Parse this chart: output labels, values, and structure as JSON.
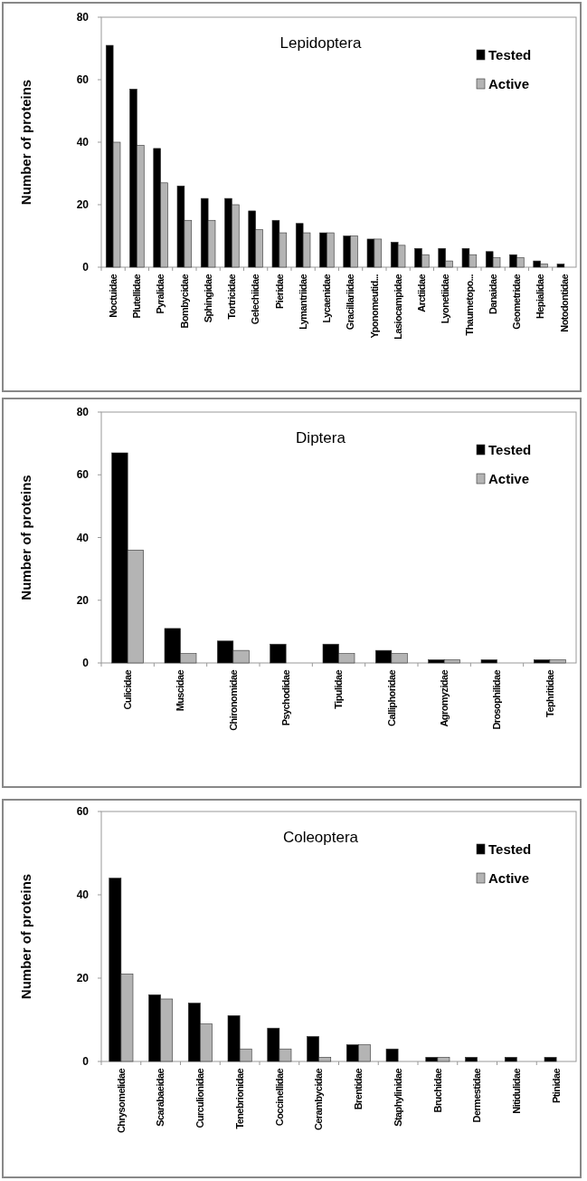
{
  "chart_data": [
    {
      "type": "bar",
      "title": "Lepidoptera",
      "ylabel": "Number of proteins",
      "categories": [
        "Noctuidae",
        "Plutellidae",
        "Pyralidae",
        "Bombycidae",
        "Sphingidae",
        "Tortricidae",
        "Gelechiidae",
        "Pieridae",
        "Lymantriidae",
        "Lycaenidae",
        "Gracillariidae",
        "Yponomeutid...",
        "Lasiocampidae",
        "Arctiidae",
        "Lyonetiidae",
        "Thaumetopo...",
        "Danaidae",
        "Geometridae",
        "Hepialidae",
        "Notodontidae"
      ],
      "series": [
        {
          "name": "Tested",
          "color": "#000000",
          "values": [
            71,
            57,
            38,
            26,
            22,
            22,
            18,
            15,
            14,
            11,
            10,
            9,
            8,
            6,
            6,
            6,
            5,
            4,
            2,
            1
          ]
        },
        {
          "name": "Active",
          "color": "#b4b4b4",
          "values": [
            40,
            39,
            27,
            15,
            15,
            20,
            12,
            11,
            11,
            11,
            10,
            9,
            7,
            4,
            2,
            4,
            3,
            3,
            1,
            0
          ]
        }
      ],
      "ylim": [
        0,
        80
      ],
      "yticks": [
        0,
        20,
        40,
        60,
        80
      ],
      "legend": "top right"
    },
    {
      "type": "bar",
      "title": "Diptera",
      "ylabel": "Number of proteins",
      "categories": [
        "Culicidae",
        "Muscidae",
        "Chironomidae",
        "Psychodidae",
        "Tipulidae",
        "Calliphoridae",
        "Agromyzidae",
        "Drosophilidae",
        "Tephritidae"
      ],
      "series": [
        {
          "name": "Tested",
          "color": "#000000",
          "values": [
            67,
            11,
            7,
            6,
            6,
            4,
            1,
            1,
            1
          ]
        },
        {
          "name": "Active",
          "color": "#b4b4b4",
          "values": [
            36,
            3,
            4,
            0,
            3,
            3,
            1,
            0,
            1
          ]
        }
      ],
      "ylim": [
        0,
        80
      ],
      "yticks": [
        0,
        20,
        40,
        60,
        80
      ],
      "legend": "top right"
    },
    {
      "type": "bar",
      "title": "Coleoptera",
      "ylabel": "Number of proteins",
      "categories": [
        "Chrysomelidae",
        "Scarabaeidae",
        "Curculionidae",
        "Tenebrionidae",
        "Coccinellidae",
        "Cerambycidae",
        "Brentidae",
        "Staphylinidae",
        "Bruchidae",
        "Dermestidae",
        "Nitidulidae",
        "Ptinidae"
      ],
      "series": [
        {
          "name": "Tested",
          "color": "#000000",
          "values": [
            44,
            16,
            14,
            11,
            8,
            6,
            4,
            3,
            1,
            1,
            1,
            1
          ]
        },
        {
          "name": "Active",
          "color": "#b4b4b4",
          "values": [
            21,
            15,
            9,
            3,
            3,
            1,
            4,
            0,
            1,
            0,
            0,
            0
          ]
        }
      ],
      "ylim": [
        0,
        60
      ],
      "yticks": [
        0,
        20,
        40,
        60
      ],
      "legend": "top right"
    }
  ]
}
